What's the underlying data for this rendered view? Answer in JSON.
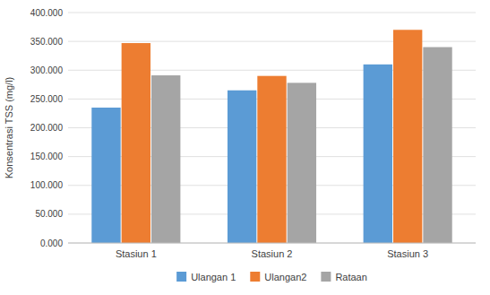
{
  "chart_data": {
    "type": "bar",
    "categories": [
      "Stasiun 1",
      "Stasiun 2",
      "Stasiun 3"
    ],
    "series": [
      {
        "name": "Ulangan 1",
        "color": "#5B9BD5",
        "values": [
          235,
          265,
          310
        ]
      },
      {
        "name": "Ulangan2",
        "color": "#ED7D31",
        "values": [
          347,
          290,
          370
        ]
      },
      {
        "name": "Rataan",
        "color": "#A5A5A5",
        "values": [
          291,
          278,
          340
        ]
      }
    ],
    "ylabel": "Konsentrasi TSS (mg/l)",
    "ylim": [
      0,
      400
    ],
    "yticks": [
      {
        "value": 0,
        "label": "0.000"
      },
      {
        "value": 50,
        "label": "50.000"
      },
      {
        "value": 100,
        "label": "100.000"
      },
      {
        "value": 150,
        "label": "150.000"
      },
      {
        "value": 200,
        "label": "200.000"
      },
      {
        "value": 250,
        "label": "250.000"
      },
      {
        "value": 300,
        "label": "300.000"
      },
      {
        "value": 350,
        "label": "350.000"
      },
      {
        "value": 400,
        "label": "400.000"
      }
    ],
    "grid": true,
    "legend": "bottom"
  }
}
